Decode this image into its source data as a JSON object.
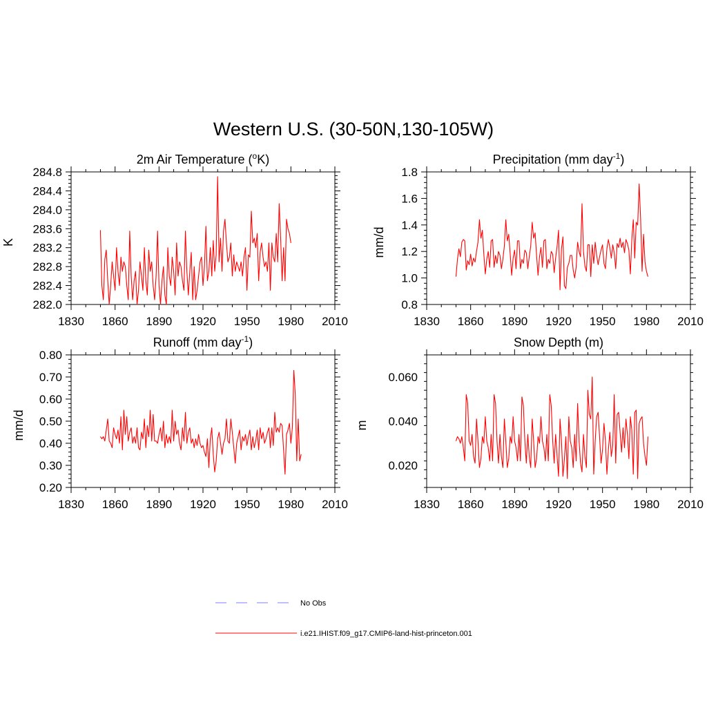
{
  "title": "Western U.S. (30-50N,130-105W)",
  "colors": {
    "model": "#ff0000",
    "obs": "#9999ff",
    "axis": "#000000"
  },
  "legend": [
    {
      "label": "No Obs",
      "style": "dashed",
      "color": "#9999ff"
    },
    {
      "label": "i.e21.IHIST.f09_g17.CMIP6-land-hist-princeton.001",
      "style": "solid",
      "color": "#ff0000"
    }
  ],
  "chart_data": [
    {
      "type": "line",
      "title": "2m Air Temperature (°K)",
      "title_base": "2m Air Temperature (",
      "title_sup": "o",
      "title_tail": "K)",
      "ylabel": "K",
      "xlim": [
        1830,
        2010
      ],
      "ylim": [
        282.0,
        284.8
      ],
      "xticks": [
        1830,
        1860,
        1890,
        1920,
        1950,
        1980,
        2010
      ],
      "xtick_labels": [
        "1830",
        "1860",
        "1890",
        "1920",
        "1950",
        "1980",
        "2010"
      ],
      "yticks": [
        282.0,
        282.4,
        282.8,
        283.2,
        283.6,
        284.0,
        284.4,
        284.8
      ],
      "ytick_labels": [
        "282.0",
        "282.4",
        "282.8",
        "283.2",
        "283.6",
        "284.0",
        "284.4",
        "284.8"
      ],
      "x_start": 1850,
      "series": [
        {
          "values": [
            283.57,
            282.4,
            282.1,
            282.95,
            283.15,
            282.5,
            282.0,
            282.4,
            282.9,
            282.6,
            282.3,
            283.2,
            282.7,
            282.4,
            283.0,
            282.7,
            282.9,
            282.8,
            282.4,
            282.1,
            283.55,
            282.6,
            282.1,
            282.5,
            282.7,
            282.0,
            282.3,
            282.9,
            282.6,
            282.3,
            283.2,
            282.5,
            282.2,
            283.15,
            282.7,
            282.9,
            282.4,
            282.1,
            282.6,
            283.55,
            282.4,
            282.0,
            282.5,
            282.8,
            282.2,
            282.0,
            283.2,
            282.6,
            282.4,
            283.0,
            282.7,
            282.2,
            283.3,
            282.6,
            282.9,
            282.8,
            282.5,
            282.3,
            283.55,
            282.7,
            282.2,
            282.7,
            283.1,
            282.1,
            282.8,
            282.1,
            282.3,
            282.6,
            282.9,
            283.0,
            282.4,
            282.8,
            283.65,
            282.5,
            282.7,
            283.2,
            282.6,
            283.35,
            282.7,
            283.05,
            284.7,
            282.9,
            283.4,
            282.7,
            283.55,
            283.8,
            283.3,
            282.9,
            283.0,
            283.3,
            282.6,
            283.05,
            282.7,
            282.9,
            282.8,
            282.7,
            282.9,
            282.6,
            283.0,
            283.2,
            282.3,
            283.05,
            283.0,
            283.97,
            283.3,
            283.4,
            283.2,
            283.5,
            282.5,
            283.1,
            283.3,
            283.0,
            282.8,
            282.9,
            282.7,
            283.3,
            282.3,
            283.3,
            283.0,
            282.9,
            283.5,
            282.9,
            284.13,
            283.4,
            282.5,
            283.2,
            282.5,
            283.8,
            283.6,
            283.5,
            283.3
          ]
        }
      ]
    },
    {
      "type": "line",
      "title": "Precipitation (mm day-1)",
      "title_base": "Precipitation (mm day",
      "title_sup": "-1",
      "title_tail": ")",
      "ylabel": "mm/d",
      "xlim": [
        1830,
        2010
      ],
      "ylim": [
        0.8,
        1.8
      ],
      "xticks": [
        1830,
        1860,
        1890,
        1920,
        1950,
        1980,
        2010
      ],
      "xtick_labels": [
        "1830",
        "1860",
        "1890",
        "1920",
        "1950",
        "1980",
        "2010"
      ],
      "yticks": [
        0.8,
        1.0,
        1.2,
        1.4,
        1.6,
        1.8
      ],
      "ytick_labels": [
        "0.8",
        "1.0",
        "1.2",
        "1.4",
        "1.6",
        "1.8"
      ],
      "x_start": 1850,
      "series": [
        {
          "values": [
            1.01,
            1.14,
            1.22,
            1.16,
            1.27,
            1.29,
            1.28,
            1.06,
            1.13,
            1.1,
            1.18,
            1.09,
            1.15,
            1.12,
            1.2,
            1.27,
            1.44,
            1.3,
            1.36,
            1.18,
            1.03,
            1.14,
            1.2,
            1.08,
            1.28,
            1.29,
            1.08,
            1.17,
            1.11,
            1.2,
            1.17,
            1.07,
            1.14,
            1.24,
            1.44,
            1.28,
            1.33,
            1.18,
            1.02,
            1.15,
            1.21,
            1.07,
            1.28,
            1.28,
            1.07,
            1.14,
            1.11,
            1.21,
            1.19,
            1.07,
            1.16,
            1.24,
            1.42,
            1.3,
            1.34,
            1.17,
            1.02,
            1.16,
            1.23,
            1.08,
            1.28,
            1.29,
            1.07,
            1.14,
            1.11,
            1.2,
            1.18,
            1.04,
            1.15,
            1.24,
            1.36,
            0.91,
            1.22,
            1.31,
            0.94,
            0.92,
            1.08,
            1.11,
            1.17,
            1.17,
            1.06,
            1.0,
            1.08,
            1.27,
            1.2,
            1.16,
            1.56,
            1.2,
            1.09,
            1.05,
            1.25,
            1.25,
            1.01,
            1.25,
            1.11,
            1.27,
            1.17,
            1.1,
            1.16,
            1.21,
            1.25,
            1.11,
            1.07,
            1.22,
            1.29,
            1.23,
            1.15,
            1.25,
            1.19,
            1.07,
            1.26,
            1.23,
            1.3,
            1.23,
            1.27,
            1.19,
            1.29,
            1.26,
            1.21,
            1.03,
            1.29,
            1.44,
            1.15,
            1.42,
            1.4,
            1.71,
            1.45,
            1.05,
            1.33,
            1.12,
            1.05,
            1.01
          ]
        }
      ]
    },
    {
      "type": "line",
      "title": "Runoff (mm day-1)",
      "title_base": "Runoff (mm day",
      "title_sup": "-1",
      "title_tail": ")",
      "ylabel": "mm/d",
      "xlim": [
        1830,
        2010
      ],
      "ylim": [
        0.2,
        0.8
      ],
      "xticks": [
        1830,
        1860,
        1890,
        1920,
        1950,
        1980,
        2010
      ],
      "xtick_labels": [
        "1830",
        "1860",
        "1890",
        "1920",
        "1950",
        "1980",
        "2010"
      ],
      "yticks": [
        0.2,
        0.3,
        0.4,
        0.5,
        0.6,
        0.7,
        0.8
      ],
      "ytick_labels": [
        "0.20",
        "0.30",
        "0.40",
        "0.50",
        "0.60",
        "0.70",
        "0.80"
      ],
      "x_start": 1850,
      "series": [
        {
          "values": [
            0.43,
            0.42,
            0.43,
            0.41,
            0.46,
            0.51,
            0.41,
            0.4,
            0.38,
            0.47,
            0.44,
            0.42,
            0.46,
            0.4,
            0.52,
            0.37,
            0.55,
            0.44,
            0.52,
            0.41,
            0.45,
            0.47,
            0.4,
            0.43,
            0.4,
            0.47,
            0.38,
            0.37,
            0.45,
            0.42,
            0.51,
            0.38,
            0.48,
            0.43,
            0.55,
            0.41,
            0.53,
            0.41,
            0.41,
            0.4,
            0.44,
            0.47,
            0.41,
            0.5,
            0.38,
            0.44,
            0.4,
            0.43,
            0.4,
            0.55,
            0.41,
            0.5,
            0.44,
            0.46,
            0.4,
            0.37,
            0.47,
            0.41,
            0.54,
            0.4,
            0.45,
            0.47,
            0.4,
            0.42,
            0.38,
            0.42,
            0.39,
            0.44,
            0.4,
            0.38,
            0.39,
            0.36,
            0.34,
            0.42,
            0.29,
            0.42,
            0.47,
            0.35,
            0.27,
            0.32,
            0.42,
            0.45,
            0.4,
            0.35,
            0.4,
            0.42,
            0.51,
            0.41,
            0.4,
            0.51,
            0.45,
            0.38,
            0.31,
            0.4,
            0.43,
            0.46,
            0.37,
            0.43,
            0.41,
            0.44,
            0.39,
            0.43,
            0.46,
            0.37,
            0.43,
            0.38,
            0.41,
            0.46,
            0.37,
            0.47,
            0.42,
            0.45,
            0.4,
            0.42,
            0.45,
            0.47,
            0.38,
            0.47,
            0.39,
            0.54,
            0.45,
            0.47,
            0.45,
            0.49,
            0.48,
            0.37,
            0.26,
            0.44,
            0.46,
            0.49,
            0.4,
            0.47,
            0.73,
            0.62,
            0.32,
            0.51,
            0.32,
            0.35
          ]
        }
      ]
    },
    {
      "type": "line",
      "title": "Snow Depth (m)",
      "title_base": "Snow Depth (m)",
      "title_sup": "",
      "title_tail": "",
      "ylabel": "m",
      "xlim": [
        1830,
        2010
      ],
      "ylim": [
        0.01,
        0.07
      ],
      "xticks": [
        1830,
        1860,
        1890,
        1920,
        1950,
        1980,
        2010
      ],
      "xtick_labels": [
        "1830",
        "1860",
        "1890",
        "1920",
        "1950",
        "1980",
        "2010"
      ],
      "yticks": [
        0.02,
        0.04,
        0.06
      ],
      "ytick_labels": [
        "0.020",
        "0.040",
        "0.060"
      ],
      "x_start": 1850,
      "series": [
        {
          "values": [
            0.031,
            0.033,
            0.032,
            0.03,
            0.033,
            0.028,
            0.022,
            0.052,
            0.048,
            0.031,
            0.029,
            0.034,
            0.024,
            0.021,
            0.041,
            0.031,
            0.019,
            0.023,
            0.033,
            0.03,
            0.042,
            0.031,
            0.028,
            0.022,
            0.034,
            0.022,
            0.052,
            0.048,
            0.031,
            0.021,
            0.034,
            0.024,
            0.019,
            0.041,
            0.031,
            0.019,
            0.023,
            0.033,
            0.03,
            0.042,
            0.031,
            0.028,
            0.022,
            0.034,
            0.022,
            0.051,
            0.047,
            0.031,
            0.021,
            0.034,
            0.024,
            0.019,
            0.041,
            0.031,
            0.019,
            0.023,
            0.033,
            0.03,
            0.042,
            0.031,
            0.028,
            0.022,
            0.034,
            0.022,
            0.052,
            0.047,
            0.031,
            0.021,
            0.034,
            0.024,
            0.015,
            0.041,
            0.031,
            0.015,
            0.023,
            0.033,
            0.014,
            0.042,
            0.031,
            0.028,
            0.019,
            0.034,
            0.022,
            0.048,
            0.031,
            0.021,
            0.017,
            0.034,
            0.024,
            0.019,
            0.054,
            0.043,
            0.041,
            0.06,
            0.016,
            0.031,
            0.042,
            0.044,
            0.033,
            0.021,
            0.027,
            0.039,
            0.031,
            0.016,
            0.027,
            0.035,
            0.024,
            0.029,
            0.052,
            0.021,
            0.043,
            0.044,
            0.035,
            0.026,
            0.037,
            0.028,
            0.041,
            0.034,
            0.023,
            0.042,
            0.036,
            0.016,
            0.044,
            0.045,
            0.014,
            0.039,
            0.041,
            0.042,
            0.03,
            0.024,
            0.02,
            0.033
          ]
        }
      ]
    }
  ]
}
